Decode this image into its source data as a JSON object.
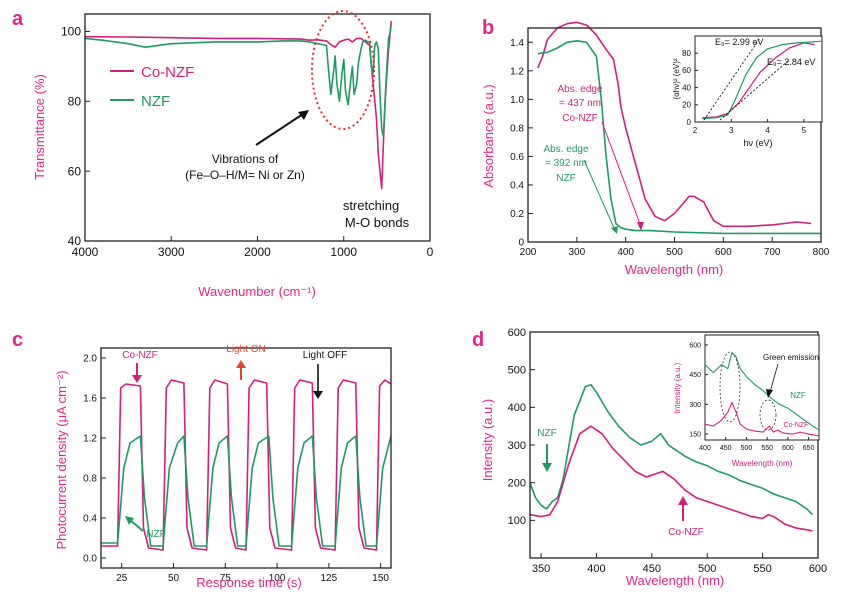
{
  "colors": {
    "co": "#d21f7d",
    "nzf": "#1e9a63",
    "axis_label": "#e0278a",
    "light_on": "#e8452f",
    "dots": "#e22b2b"
  },
  "chart_data": [
    {
      "type": "line",
      "panel": "a",
      "xlabel": "Wavenumber (cm⁻¹)",
      "ylabel": "Transmittance (%)",
      "xlim": [
        4000,
        0
      ],
      "ylim": [
        40,
        105
      ],
      "xticks": [
        "4000",
        "3000",
        "2000",
        "1000",
        "0"
      ],
      "yticks": [
        "100",
        "80",
        "60",
        "40"
      ],
      "legend": [
        "Co-NZF",
        "NZF"
      ],
      "annotations": {
        "vibrations": [
          "Vibrations of",
          "(Fe–O–H/M= Ni or Zn)"
        ],
        "stretching": [
          "stretching",
          "M-O bonds"
        ]
      },
      "series": [
        {
          "name": "Co-NZF",
          "x": [
            4000,
            3500,
            3000,
            2500,
            2000,
            1700,
            1500,
            1400,
            1300,
            1200,
            1150,
            1100,
            1050,
            1000,
            950,
            900,
            850,
            800,
            750,
            700,
            660,
            620,
            600,
            580,
            560,
            540,
            520,
            500,
            480,
            460,
            450
          ],
          "y": [
            98.5,
            98.4,
            98.2,
            98.0,
            98.0,
            97.9,
            97.8,
            97.5,
            97.6,
            97.3,
            96.2,
            95.5,
            97.0,
            97.5,
            97.8,
            97.0,
            98.0,
            98.0,
            97.0,
            96.0,
            85.0,
            75.0,
            65.0,
            60.0,
            55.0,
            68.0,
            80.0,
            88.0,
            95.0,
            100.0,
            103.0
          ]
        },
        {
          "name": "NZF",
          "x": [
            4000,
            3800,
            3500,
            3300,
            3000,
            2500,
            2000,
            1700,
            1500,
            1400,
            1300,
            1200,
            1180,
            1150,
            1120,
            1100,
            1080,
            1050,
            1020,
            1000,
            980,
            950,
            920,
            900,
            880,
            850,
            830,
            800,
            780,
            750,
            720,
            700,
            680,
            660,
            650,
            640,
            620,
            600,
            580,
            560,
            540,
            520,
            500,
            480,
            460,
            450
          ],
          "y": [
            98.0,
            97.5,
            96.5,
            95.5,
            96.5,
            97.0,
            97.0,
            97.3,
            97.3,
            97.0,
            96.5,
            96.0,
            90.0,
            82.0,
            88.0,
            93.0,
            85.0,
            80.0,
            88.0,
            92.0,
            83.0,
            79.0,
            86.0,
            90.0,
            82.0,
            85.0,
            91.0,
            95.0,
            97.0,
            97.5,
            97.0,
            97.0,
            90.0,
            88.0,
            92.0,
            96.0,
            97.0,
            95.0,
            82.0,
            72.0,
            70.0,
            80.0,
            90.0,
            98.0,
            100.0,
            102.0
          ]
        }
      ]
    },
    {
      "type": "line",
      "panel": "b",
      "xlabel": "Wavelength (nm)",
      "ylabel": "Absorbance (a.u.)",
      "xlim": [
        200,
        800
      ],
      "ylim": [
        0,
        1.5
      ],
      "xticks": [
        "200",
        "300",
        "400",
        "500",
        "600",
        "700",
        "800"
      ],
      "yticks": [
        "0",
        "0.2",
        "0.4",
        "0.6",
        "0.8",
        "1.0",
        "1.2",
        "1.4"
      ],
      "annotations": {
        "co_edge": [
          "Abs. edge",
          "= 437 nm",
          "Co-NZF"
        ],
        "nzf_edge": [
          "Abs. edge",
          "= 392 nm",
          "NZF"
        ]
      },
      "series": [
        {
          "name": "Co-NZF",
          "x": [
            220,
            230,
            240,
            260,
            280,
            300,
            320,
            340,
            360,
            375,
            385,
            390,
            400,
            420,
            440,
            460,
            480,
            500,
            520,
            530,
            540,
            560,
            580,
            600,
            650,
            700,
            750,
            780
          ],
          "y": [
            1.22,
            1.3,
            1.42,
            1.5,
            1.53,
            1.54,
            1.52,
            1.45,
            1.35,
            1.28,
            1.1,
            0.95,
            0.8,
            0.55,
            0.3,
            0.18,
            0.15,
            0.2,
            0.28,
            0.32,
            0.32,
            0.28,
            0.15,
            0.11,
            0.11,
            0.12,
            0.14,
            0.13
          ]
        },
        {
          "name": "NZF",
          "x": [
            220,
            240,
            260,
            280,
            300,
            320,
            340,
            350,
            360,
            370,
            380,
            390,
            400,
            420,
            450,
            500,
            600,
            700,
            800
          ],
          "y": [
            1.32,
            1.33,
            1.36,
            1.4,
            1.41,
            1.4,
            1.3,
            1.0,
            0.6,
            0.3,
            0.13,
            0.1,
            0.09,
            0.08,
            0.08,
            0.07,
            0.06,
            0.06,
            0.06
          ]
        }
      ],
      "inset": {
        "xlabel": "hν (eV)",
        "ylabel": "(αhν)² (eV)²",
        "xlim": [
          2,
          5.5
        ],
        "ylim": [
          0,
          100
        ],
        "xticks": [
          "2",
          "3",
          "4",
          "5"
        ],
        "yticks": [
          "0",
          "20",
          "40",
          "60",
          "80"
        ],
        "labels": [
          "E₉= 2.99 eV",
          "E₉= 2.84 eV"
        ],
        "series": [
          {
            "name": "Co-NZF",
            "x": [
              2.2,
              2.6,
              2.9,
              3.2,
              3.5,
              3.8,
              4.2,
              4.6,
              5.0,
              5.3
            ],
            "y": [
              5,
              6,
              10,
              22,
              40,
              58,
              74,
              86,
              92,
              90
            ]
          },
          {
            "name": "NZF",
            "x": [
              2.2,
              2.6,
              2.9,
              3.1,
              3.4,
              3.7,
              4.0,
              4.4,
              4.8,
              5.2,
              5.5
            ],
            "y": [
              4,
              5,
              8,
              25,
              55,
              75,
              85,
              90,
              92,
              93,
              94
            ]
          }
        ]
      }
    },
    {
      "type": "line",
      "panel": "c",
      "xlabel": "Response time (s)",
      "ylabel": "Photocurrent density (μA cm⁻²)",
      "xlim": [
        15,
        155
      ],
      "ylim": [
        -0.1,
        2.1
      ],
      "xticks": [
        "25",
        "50",
        "75",
        "100",
        "125",
        "150"
      ],
      "yticks": [
        "0.0",
        "0.4",
        "0.8",
        "1.2",
        "1.6",
        "2.0"
      ],
      "annotations": {
        "co": "Co-NZF",
        "nzf": "NZF",
        "on": "Light ON",
        "off": "Light OFF"
      },
      "series": [
        {
          "name": "Co-NZF",
          "x": [
            15,
            23,
            24.5,
            27,
            34,
            35.5,
            38,
            45,
            46.5,
            49,
            55,
            56.5,
            59,
            66,
            67.5,
            70,
            76,
            77.5,
            80,
            85,
            86.5,
            89,
            95,
            96.5,
            99,
            107,
            108.5,
            111,
            117,
            118.5,
            121,
            128,
            129.5,
            132,
            138,
            139.5,
            142,
            148,
            149.5,
            152,
            155
          ],
          "y": [
            0.12,
            0.12,
            1.7,
            1.74,
            1.72,
            0.3,
            0.1,
            0.08,
            1.7,
            1.78,
            1.75,
            0.3,
            0.1,
            0.08,
            1.7,
            1.78,
            1.74,
            0.3,
            0.1,
            0.08,
            1.7,
            1.78,
            1.75,
            0.3,
            0.1,
            0.08,
            1.7,
            1.78,
            1.75,
            0.3,
            0.1,
            0.08,
            1.7,
            1.78,
            1.75,
            0.3,
            0.1,
            0.08,
            1.72,
            1.78,
            1.74
          ]
        },
        {
          "name": "NZF",
          "x": [
            15,
            23,
            26,
            29,
            34,
            36,
            39,
            45,
            48,
            52,
            55,
            57,
            60,
            66,
            69,
            72,
            76,
            78,
            81,
            85,
            88,
            91,
            96,
            98,
            101,
            107,
            110,
            113,
            117,
            119,
            122,
            128,
            131,
            134,
            138,
            140,
            143,
            148,
            151,
            155
          ],
          "y": [
            0.15,
            0.15,
            0.9,
            1.15,
            1.22,
            0.6,
            0.12,
            0.12,
            0.9,
            1.15,
            1.22,
            0.6,
            0.12,
            0.12,
            0.9,
            1.15,
            1.22,
            0.6,
            0.12,
            0.12,
            0.9,
            1.15,
            1.22,
            0.6,
            0.12,
            0.12,
            0.9,
            1.15,
            1.22,
            0.6,
            0.12,
            0.12,
            0.9,
            1.15,
            1.22,
            0.6,
            0.12,
            0.12,
            0.9,
            1.22
          ]
        }
      ]
    },
    {
      "type": "line",
      "panel": "d",
      "xlabel": "Wavelength (nm)",
      "ylabel": "Intensity (a.u.)",
      "xlim": [
        340,
        600
      ],
      "ylim": [
        0,
        600
      ],
      "xticks": [
        "350",
        "400",
        "450",
        "500",
        "550",
        "600"
      ],
      "yticks": [
        "100",
        "200",
        "300",
        "400",
        "500",
        "600"
      ],
      "annotations": {
        "nzf": "NZF",
        "co": "Co-NZF"
      },
      "series": [
        {
          "name": "NZF",
          "x": [
            340,
            345,
            350,
            355,
            360,
            365,
            370,
            380,
            390,
            395,
            400,
            410,
            420,
            430,
            440,
            450,
            458,
            465,
            470,
            480,
            490,
            500,
            510,
            520,
            530,
            540,
            550,
            560,
            570,
            580,
            590,
            595
          ],
          "y": [
            200,
            160,
            140,
            130,
            150,
            160,
            210,
            380,
            455,
            460,
            440,
            390,
            350,
            320,
            300,
            310,
            330,
            300,
            290,
            270,
            255,
            245,
            230,
            220,
            205,
            195,
            185,
            170,
            160,
            150,
            130,
            115
          ]
        },
        {
          "name": "Co-NZF",
          "x": [
            340,
            350,
            358,
            365,
            375,
            385,
            395,
            405,
            415,
            425,
            435,
            445,
            455,
            460,
            470,
            480,
            490,
            500,
            510,
            520,
            530,
            540,
            550,
            555,
            560,
            570,
            580,
            590,
            595
          ],
          "y": [
            115,
            110,
            115,
            150,
            250,
            330,
            350,
            330,
            290,
            260,
            230,
            215,
            225,
            230,
            210,
            180,
            160,
            150,
            140,
            130,
            120,
            110,
            105,
            115,
            110,
            90,
            80,
            75,
            72
          ]
        }
      ],
      "inset": {
        "xlabel": "Wavelength (nm)",
        "ylabel": "Intensity (a.u.)",
        "xlim": [
          400,
          675
        ],
        "ylim": [
          120,
          650
        ],
        "xticks": [
          "400",
          "450",
          "500",
          "550",
          "600",
          "650"
        ],
        "yticks": [
          "150",
          "300",
          "450",
          "600"
        ],
        "labels": [
          "Green emission",
          "NZF",
          "Co-NZF"
        ],
        "series": [
          {
            "name": "NZF",
            "x": [
              400,
              420,
              440,
              455,
              465,
              475,
              485,
              500,
              520,
              540,
              560,
              580,
              600,
              620,
              640,
              660,
              675
            ],
            "y": [
              500,
              460,
              500,
              480,
              560,
              540,
              480,
              440,
              400,
              370,
              330,
              300,
              280,
              250,
              220,
              190,
              170
            ]
          },
          {
            "name": "Co-NZF",
            "x": [
              400,
              420,
              440,
              455,
              465,
              475,
              485,
              500,
              520,
              540,
              555,
              565,
              575,
              590,
              610,
              630,
              650,
              675
            ],
            "y": [
              200,
              190,
              220,
              260,
              310,
              260,
              200,
              175,
              165,
              160,
              190,
              160,
              170,
              155,
              150,
              160,
              150,
              140
            ]
          }
        ]
      }
    }
  ]
}
